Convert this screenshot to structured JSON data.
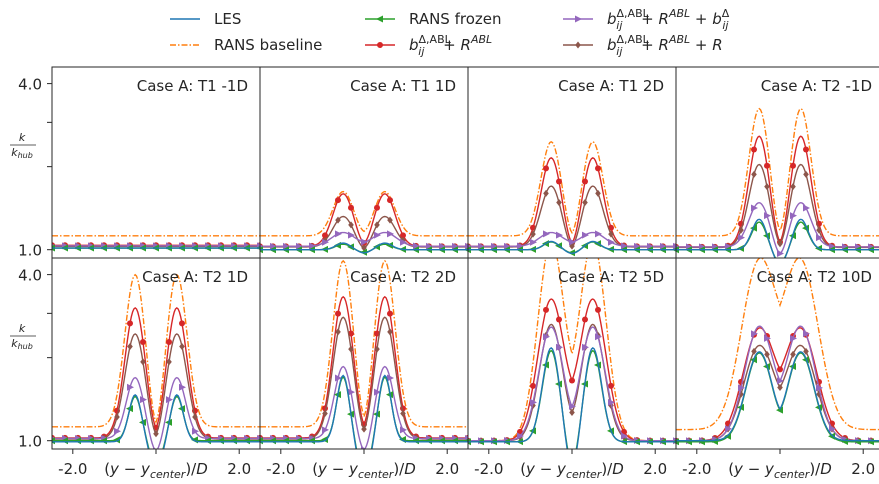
{
  "legend": {
    "items": [
      {
        "key": "les",
        "label": "LES",
        "color": "#1f77b4"
      },
      {
        "key": "rans_baseline",
        "label": "RANS baseline",
        "color": "#ff7f0e"
      },
      {
        "key": "rans_frozen",
        "label": "RANS frozen",
        "color": "#2ca02c"
      },
      {
        "key": "b_r",
        "label": "b_ij^{Δ,ABL} + R^{ABL}",
        "color": "#d62728"
      },
      {
        "key": "b_r_b",
        "label": "b_ij^{Δ,ABL} + R^{ABL} + b_ij^{Δ}",
        "color": "#9467bd"
      },
      {
        "key": "b_r_r",
        "label": "b_ij^{Δ,ABL} + R^{ABL} + R",
        "color": "#8c564b"
      }
    ]
  },
  "chart_data": {
    "type": "line",
    "xlabel": "(y − y_center)/D",
    "ylabel": "k / k_hub",
    "xlim": [
      -2.5,
      2.5
    ],
    "ylim": [
      0.85,
      4.3
    ],
    "xticks": [
      -2.0,
      2.0
    ],
    "xtick_labels": [
      "-2.0",
      "2.0"
    ],
    "yticks": [
      1.0,
      4.0
    ],
    "ytick_labels": [
      "1.0",
      "4.0"
    ],
    "grid": false,
    "legend_position": "top",
    "panels": [
      {
        "title": "Case A: T1 -1D",
        "series": {
          "les": {
            "base": 1.03,
            "peak": 0.0,
            "width": 0.35,
            "dip": 0.0
          },
          "rans_baseline": {
            "base": 1.25,
            "peak": 0.0,
            "width": 0.35,
            "dip": 0.0
          },
          "rans_frozen": {
            "base": 1.03,
            "peak": 0.0,
            "width": 0.35,
            "dip": 0.0
          },
          "b_r": {
            "base": 1.08,
            "peak": 0.0,
            "width": 0.35,
            "dip": 0.0
          },
          "b_r_b": {
            "base": 1.07,
            "peak": 0.0,
            "width": 0.35,
            "dip": 0.0
          },
          "b_r_r": {
            "base": 1.06,
            "peak": 0.0,
            "width": 0.35,
            "dip": 0.0
          }
        }
      },
      {
        "title": "Case A: T1  1D",
        "series": {
          "les": {
            "base": 1.0,
            "peak": 0.12,
            "width": 0.25,
            "dip": 0.12
          },
          "rans_baseline": {
            "base": 1.25,
            "peak": 0.8,
            "width": 0.35,
            "dip": 0.15
          },
          "rans_frozen": {
            "base": 1.0,
            "peak": 0.1,
            "width": 0.25,
            "dip": 0.1
          },
          "b_r": {
            "base": 1.06,
            "peak": 0.95,
            "width": 0.35,
            "dip": 0.25
          },
          "b_r_b": {
            "base": 1.06,
            "peak": 0.25,
            "width": 0.4,
            "dip": 0.0
          },
          "b_r_r": {
            "base": 1.05,
            "peak": 0.55,
            "width": 0.35,
            "dip": 0.25
          }
        }
      },
      {
        "title": "Case A: T1  2D",
        "series": {
          "les": {
            "base": 1.0,
            "peak": 0.15,
            "width": 0.25,
            "dip": 0.14
          },
          "rans_baseline": {
            "base": 1.25,
            "peak": 1.7,
            "width": 0.35,
            "dip": 0.55
          },
          "rans_frozen": {
            "base": 1.0,
            "peak": 0.14,
            "width": 0.25,
            "dip": 0.12
          },
          "b_r": {
            "base": 1.06,
            "peak": 1.6,
            "width": 0.35,
            "dip": 0.5
          },
          "b_r_b": {
            "base": 1.06,
            "peak": 0.25,
            "width": 0.4,
            "dip": 0.0
          },
          "b_r_r": {
            "base": 1.05,
            "peak": 1.1,
            "width": 0.35,
            "dip": 0.4
          }
        }
      },
      {
        "title": "Case A: T2 -1D",
        "series": {
          "les": {
            "base": 1.0,
            "peak": 0.55,
            "width": 0.25,
            "dip": 0.55
          },
          "rans_baseline": {
            "base": 1.25,
            "peak": 2.3,
            "width": 0.35,
            "dip": 0.7
          },
          "rans_frozen": {
            "base": 1.0,
            "peak": 0.5,
            "width": 0.25,
            "dip": 0.5
          },
          "b_r": {
            "base": 1.05,
            "peak": 2.0,
            "width": 0.35,
            "dip": 0.6
          },
          "b_r_b": {
            "base": 1.05,
            "peak": 0.8,
            "width": 0.35,
            "dip": 0.55
          },
          "b_r_r": {
            "base": 1.04,
            "peak": 1.5,
            "width": 0.35,
            "dip": 0.45
          }
        }
      },
      {
        "title": "Case A: T2  1D",
        "series": {
          "les": {
            "base": 0.98,
            "peak": 0.85,
            "width": 0.22,
            "dip": 0.95
          },
          "rans_baseline": {
            "base": 1.25,
            "peak": 2.75,
            "width": 0.35,
            "dip": 0.9
          },
          "rans_frozen": {
            "base": 1.0,
            "peak": 0.8,
            "width": 0.22,
            "dip": 0.85
          },
          "b_r": {
            "base": 1.05,
            "peak": 2.35,
            "width": 0.35,
            "dip": 0.55
          },
          "b_r_b": {
            "base": 1.04,
            "peak": 1.1,
            "width": 0.3,
            "dip": 0.65
          },
          "b_r_r": {
            "base": 1.03,
            "peak": 1.9,
            "width": 0.35,
            "dip": 0.55
          }
        }
      },
      {
        "title": "Case A: T2  2D",
        "series": {
          "les": {
            "base": 0.98,
            "peak": 1.2,
            "width": 0.22,
            "dip": 1.25
          },
          "rans_baseline": {
            "base": 1.25,
            "peak": 3.0,
            "width": 0.35,
            "dip": 0.8
          },
          "rans_frozen": {
            "base": 1.0,
            "peak": 1.15,
            "width": 0.22,
            "dip": 1.15
          },
          "b_r": {
            "base": 1.05,
            "peak": 2.55,
            "width": 0.35,
            "dip": 0.5
          },
          "b_r_b": {
            "base": 1.04,
            "peak": 1.3,
            "width": 0.3,
            "dip": 0.65
          },
          "b_r_r": {
            "base": 1.03,
            "peak": 2.2,
            "width": 0.35,
            "dip": 0.5
          }
        }
      },
      {
        "title": "Case A: T2  5D",
        "series": {
          "les": {
            "base": 0.98,
            "peak": 1.7,
            "width": 0.3,
            "dip": 1.25
          },
          "rans_baseline": {
            "base": 1.0,
            "peak": 3.6,
            "width": 0.45,
            "dip": 0.0
          },
          "rans_frozen": {
            "base": 0.98,
            "peak": 1.65,
            "width": 0.3,
            "dip": 1.1
          },
          "b_r": {
            "base": 1.0,
            "peak": 2.55,
            "width": 0.45,
            "dip": 0.05
          },
          "b_r_b": {
            "base": 1.0,
            "peak": 2.05,
            "width": 0.42,
            "dip": 0.25
          },
          "b_r_r": {
            "base": 1.0,
            "peak": 2.1,
            "width": 0.4,
            "dip": 0.3
          }
        }
      },
      {
        "title": "Case A: T2 10D",
        "series": {
          "les": {
            "base": 1.0,
            "peak": 1.6,
            "width": 0.45,
            "dip": 0.25
          },
          "rans_baseline": {
            "base": 1.2,
            "peak": 3.0,
            "width": 0.6,
            "dip": 0.0
          },
          "rans_frozen": {
            "base": 0.98,
            "peak": 1.6,
            "width": 0.45,
            "dip": 0.25
          },
          "b_r": {
            "base": 1.0,
            "peak": 2.0,
            "width": 0.55,
            "dip": 0.05
          },
          "b_r_b": {
            "base": 1.0,
            "peak": 2.05,
            "width": 0.5,
            "dip": 0.1
          },
          "b_r_r": {
            "base": 1.0,
            "peak": 1.7,
            "width": 0.52,
            "dip": 0.1
          }
        }
      }
    ]
  }
}
